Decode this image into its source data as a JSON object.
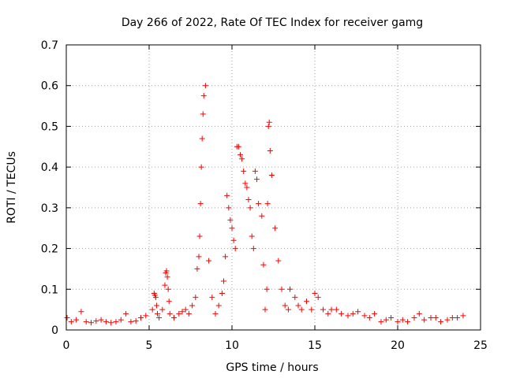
{
  "chart_data": {
    "type": "scatter",
    "title": "Day 266 of 2022, Rate Of TEC Index for receiver gamg",
    "xlabel": "GPS time / hours",
    "ylabel": "ROTI / TECUs",
    "xlim": [
      0,
      25
    ],
    "ylim": [
      0,
      0.7
    ],
    "xticks": [
      "0",
      "5",
      "10",
      "15",
      "20",
      "25"
    ],
    "yticks": [
      "0",
      "0.1",
      "0.2",
      "0.3",
      "0.4",
      "0.5",
      "0.6",
      "0.7"
    ],
    "grid": true,
    "marker": "+",
    "color": "#ff0000",
    "series": [
      {
        "x": [
          0.05,
          0.3,
          0.6,
          0.9,
          1.2,
          1.5,
          1.8,
          2.1,
          2.4,
          2.7,
          3.0,
          3.3,
          3.6,
          3.9,
          4.2,
          4.5,
          4.8,
          5.2,
          5.3,
          5.35,
          5.4,
          5.45,
          5.5,
          5.6,
          5.8,
          5.95,
          6.0,
          6.05,
          6.1,
          6.15,
          6.2,
          6.25,
          6.5,
          6.8,
          7.0,
          7.2,
          7.4,
          7.6,
          7.8,
          7.9,
          8.0,
          8.05,
          8.1,
          8.15,
          8.2,
          8.25,
          8.3,
          8.4,
          8.6,
          8.8,
          9.0,
          9.2,
          9.4,
          9.5,
          9.6,
          9.7,
          9.8,
          9.9,
          10.0,
          10.1,
          10.2,
          10.3,
          10.4,
          10.5,
          10.6,
          10.7,
          10.8,
          10.9,
          11.0,
          11.1,
          11.2,
          11.3,
          11.4,
          11.5,
          11.6,
          11.8,
          11.9,
          12.0,
          12.1,
          12.15,
          12.2,
          12.25,
          12.3,
          12.4,
          12.6,
          12.8,
          13.0,
          13.2,
          13.4,
          13.5,
          13.8,
          14.0,
          14.2,
          14.5,
          14.8,
          15.0,
          15.2,
          15.5,
          15.8,
          16.0,
          16.3,
          16.6,
          17.0,
          17.3,
          17.6,
          18.0,
          18.3,
          18.6,
          19.0,
          19.3,
          19.6,
          20.0,
          20.3,
          20.6,
          21.0,
          21.3,
          21.6,
          22.0,
          22.3,
          22.6,
          23.0,
          23.3,
          23.6,
          23.95
        ],
        "y": [
          0.03,
          0.02,
          0.025,
          0.045,
          0.02,
          0.018,
          0.022,
          0.025,
          0.02,
          0.018,
          0.02,
          0.025,
          0.04,
          0.02,
          0.022,
          0.03,
          0.035,
          0.05,
          0.09,
          0.085,
          0.08,
          0.06,
          0.04,
          0.03,
          0.05,
          0.11,
          0.14,
          0.145,
          0.13,
          0.1,
          0.07,
          0.04,
          0.03,
          0.04,
          0.045,
          0.05,
          0.04,
          0.06,
          0.08,
          0.15,
          0.18,
          0.23,
          0.31,
          0.4,
          0.47,
          0.53,
          0.575,
          0.6,
          0.17,
          0.08,
          0.04,
          0.06,
          0.09,
          0.12,
          0.18,
          0.33,
          0.3,
          0.27,
          0.25,
          0.22,
          0.2,
          0.45,
          0.45,
          0.43,
          0.42,
          0.39,
          0.36,
          0.35,
          0.32,
          0.3,
          0.23,
          0.2,
          0.39,
          0.37,
          0.31,
          0.28,
          0.16,
          0.05,
          0.1,
          0.31,
          0.5,
          0.51,
          0.44,
          0.38,
          0.25,
          0.17,
          0.1,
          0.06,
          0.05,
          0.1,
          0.08,
          0.06,
          0.05,
          0.07,
          0.05,
          0.09,
          0.08,
          0.05,
          0.04,
          0.05,
          0.05,
          0.04,
          0.035,
          0.04,
          0.045,
          0.035,
          0.03,
          0.04,
          0.02,
          0.025,
          0.03,
          0.02,
          0.025,
          0.02,
          0.03,
          0.04,
          0.025,
          0.03,
          0.03,
          0.02,
          0.025,
          0.03,
          0.03,
          0.035
        ]
      }
    ]
  }
}
